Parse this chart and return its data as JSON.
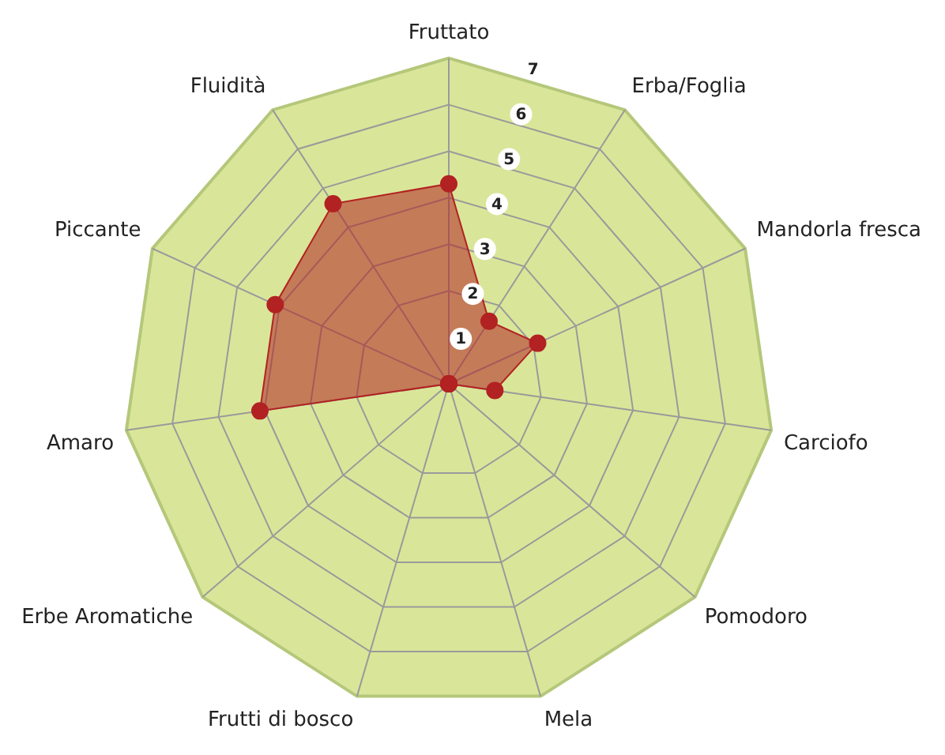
{
  "chart_data": {
    "type": "radar",
    "categories": [
      "Fruttato",
      "Erba/Foglia",
      "Mandorla fresca",
      "Carciofo",
      "Pomodoro",
      "Mela",
      "Frutti di bosco",
      "Erbe Aromatiche",
      "Amaro",
      "Piccante",
      "Fluidità"
    ],
    "series": [
      {
        "color": "#b22222",
        "values": [
          4.3,
          1.6,
          2.1,
          1.0,
          0,
          0,
          0,
          0,
          4.1,
          4.1,
          4.6
        ]
      }
    ],
    "ylim": [
      0,
      7
    ],
    "yticks": [
      1,
      2,
      3,
      4,
      5,
      6,
      7
    ],
    "grid": true,
    "marker": "circle",
    "legend": false
  }
}
